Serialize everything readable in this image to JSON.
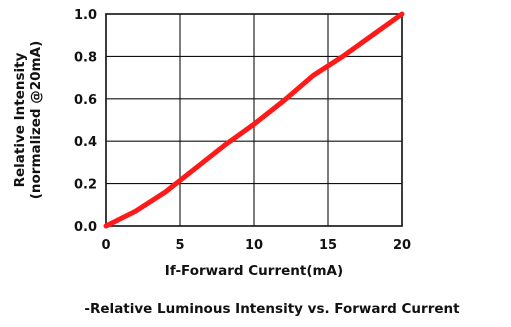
{
  "chart_data": {
    "type": "line",
    "title": "-Relative Luminous Intensity vs. Forward Current",
    "xlabel": "If-Forward Current(mA)",
    "ylabel_lines": [
      "Relative Intensity",
      "(normalized @20mA)"
    ],
    "xlim": [
      0,
      20
    ],
    "ylim": [
      0,
      1.0
    ],
    "x_ticks": [
      0,
      5,
      10,
      15,
      20
    ],
    "y_ticks": [
      0.0,
      0.2,
      0.4,
      0.6,
      0.8,
      1.0
    ],
    "x_tick_labels": [
      "0",
      "5",
      "10",
      "15",
      "20"
    ],
    "y_tick_labels": [
      "0.0",
      "0.2",
      "0.4",
      "0.6",
      "0.8",
      "1.0"
    ],
    "grid": true,
    "series": [
      {
        "color": "#ff1a1a",
        "x": [
          0,
          2,
          4,
          6,
          8,
          10,
          12,
          14,
          16,
          18,
          20
        ],
        "y": [
          0.0,
          0.07,
          0.16,
          0.27,
          0.38,
          0.48,
          0.59,
          0.71,
          0.8,
          0.9,
          1.0
        ]
      }
    ]
  }
}
